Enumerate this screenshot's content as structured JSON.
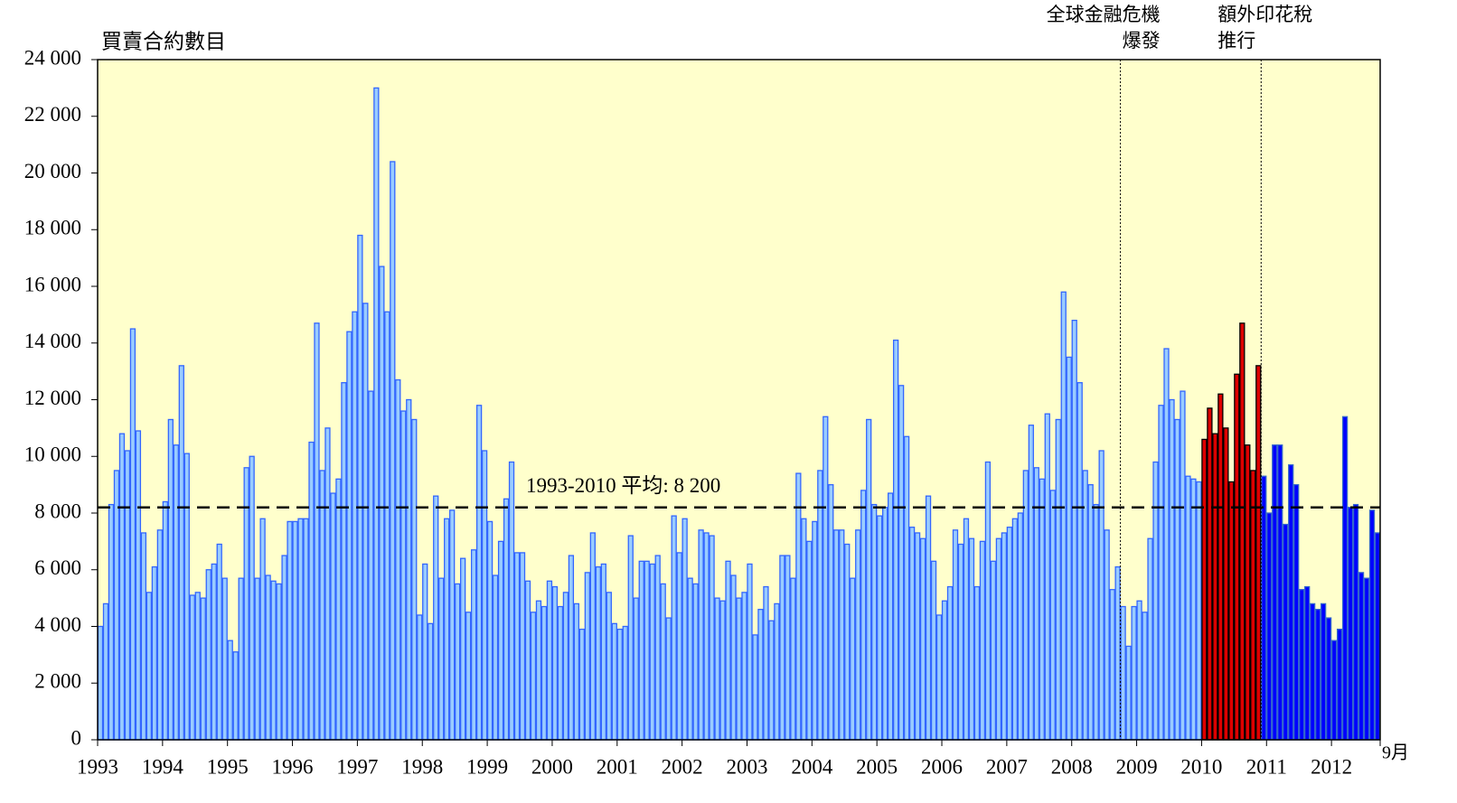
{
  "chart_data": {
    "type": "bar",
    "y_title": "買賣合約數目",
    "categories": [
      "1993",
      null,
      null,
      null,
      null,
      null,
      null,
      null,
      null,
      null,
      null,
      null,
      "1994",
      null,
      null,
      null,
      null,
      null,
      null,
      null,
      null,
      null,
      null,
      null,
      "1995",
      null,
      null,
      null,
      null,
      null,
      null,
      null,
      null,
      null,
      null,
      null,
      "1996",
      null,
      null,
      null,
      null,
      null,
      null,
      null,
      null,
      null,
      null,
      null,
      "1997",
      null,
      null,
      null,
      null,
      null,
      null,
      null,
      null,
      null,
      null,
      null,
      "1998",
      null,
      null,
      null,
      null,
      null,
      null,
      null,
      null,
      null,
      null,
      null,
      "1999",
      null,
      null,
      null,
      null,
      null,
      null,
      null,
      null,
      null,
      null,
      null,
      "2000",
      null,
      null,
      null,
      null,
      null,
      null,
      null,
      null,
      null,
      null,
      null,
      "2001",
      null,
      null,
      null,
      null,
      null,
      null,
      null,
      null,
      null,
      null,
      null,
      "2002",
      null,
      null,
      null,
      null,
      null,
      null,
      null,
      null,
      null,
      null,
      null,
      "2003",
      null,
      null,
      null,
      null,
      null,
      null,
      null,
      null,
      null,
      null,
      null,
      "2004",
      null,
      null,
      null,
      null,
      null,
      null,
      null,
      null,
      null,
      null,
      null,
      "2005",
      null,
      null,
      null,
      null,
      null,
      null,
      null,
      null,
      null,
      null,
      null,
      "2006",
      null,
      null,
      null,
      null,
      null,
      null,
      null,
      null,
      null,
      null,
      null,
      "2007",
      null,
      null,
      null,
      null,
      null,
      null,
      null,
      null,
      null,
      null,
      null,
      "2008",
      null,
      null,
      null,
      null,
      null,
      null,
      null,
      null,
      null,
      null,
      null,
      "2009",
      null,
      null,
      null,
      null,
      null,
      null,
      null,
      null,
      null,
      null,
      null,
      "2010",
      null,
      null,
      null,
      null,
      null,
      null,
      null,
      null,
      null,
      null,
      null,
      "2011",
      null,
      null,
      null,
      null,
      null,
      null,
      null,
      null,
      null,
      null,
      null,
      "2012",
      null,
      null,
      null,
      null,
      null,
      null,
      null,
      null
    ],
    "x_end_label": "9月",
    "segments": [
      {
        "color": "#99ccff",
        "edge": "#3366ff",
        "values": [
          4000,
          4800,
          8300,
          9500,
          10800,
          10200,
          14500,
          10900,
          7300,
          5200,
          6100,
          7400,
          8400,
          11300,
          10400,
          13200,
          10100,
          5100,
          5200,
          5000,
          6000,
          6200,
          6900,
          5700,
          3500,
          3100,
          5700,
          9600,
          10000,
          5700,
          7800,
          5800,
          5600,
          5500,
          6500,
          7700,
          7700,
          7800,
          7800,
          10500,
          14700,
          9500,
          11000,
          8700,
          9200,
          12600,
          14400,
          15100,
          17800,
          15400,
          12300,
          23000,
          16700,
          15100,
          20400,
          12700,
          11600,
          12000,
          11300,
          4400,
          6200,
          4100,
          8600,
          5700,
          7800,
          8100,
          5500,
          6400,
          4500,
          6700,
          11800,
          10200,
          7700,
          5800,
          7000,
          8500,
          9800,
          6600,
          6600,
          5600,
          4500,
          4900,
          4700,
          5600,
          5400,
          4700,
          5200,
          6500,
          4800,
          3900,
          5900,
          7300,
          6100,
          6200,
          5200,
          4100,
          3900,
          4000,
          7200,
          5000,
          6300,
          6300,
          6200,
          6500,
          5500,
          4300,
          7900,
          6600,
          7800,
          5700,
          5500,
          7400,
          7300,
          7200,
          5000,
          4900,
          6300,
          5800,
          5000,
          5200,
          6200,
          3700,
          4600,
          5400,
          4200,
          4800,
          6500,
          6500,
          5700,
          9400,
          7800,
          7000,
          7700,
          9500,
          11400,
          9000,
          7400,
          7400,
          6900,
          5700,
          7400,
          8800,
          11300,
          8300,
          7900,
          8200,
          8700,
          14100,
          12500,
          10700,
          7500,
          7300,
          7100,
          8600,
          6300,
          4400,
          4900,
          5400,
          7400,
          6900,
          7800,
          7100,
          5400,
          7000,
          9800,
          6300,
          7100,
          7300,
          7500,
          7800,
          8000,
          9500,
          11100,
          9600,
          9200,
          11500,
          8800,
          11300,
          15800,
          13500,
          14800,
          12600,
          9500,
          9000,
          8300,
          10200,
          7400,
          5300,
          6100,
          4700,
          3300,
          4700,
          4900,
          4500,
          7100,
          9800,
          11800,
          13800,
          12000,
          11300,
          12300,
          9300,
          9200,
          9100
        ]
      },
      {
        "color": "#dd0000",
        "edge": "#000000",
        "values": [
          10600,
          11700,
          10800,
          12200,
          11000,
          9100,
          12900,
          14700,
          10400,
          9500,
          13200
        ]
      },
      {
        "color": "#0000ff",
        "edge": "#3366cc",
        "values": [
          9300,
          8000,
          10400,
          10400,
          7600,
          9700,
          9000,
          5300,
          5400,
          4800,
          4600,
          4800,
          4300,
          3500,
          3900,
          11400,
          8200,
          8300,
          5900,
          5700,
          8100,
          7300
        ]
      }
    ],
    "average": {
      "value": 8200,
      "label": "1993-2010 平均: 8 200"
    },
    "annotations": [
      {
        "lines": [
          "全球金融危機",
          "爆發"
        ]
      },
      {
        "lines": [
          "額外印花稅",
          "推行"
        ]
      }
    ],
    "ylim": [
      0,
      24000
    ],
    "yticks": [
      0,
      {
        "value": 2000,
        "label": "2 000"
      },
      {
        "value": 4000,
        "label": "4 000"
      },
      {
        "value": 6000,
        "label": "6 000"
      },
      {
        "value": 8000,
        "label": "8 000"
      },
      {
        "value": 10000,
        "label": "10 000"
      },
      {
        "value": 12000,
        "label": "12 000"
      },
      {
        "value": 14000,
        "label": "14 000"
      },
      {
        "value": 16000,
        "label": "16 000"
      },
      {
        "value": 18000,
        "label": "18 000"
      },
      {
        "value": 20000,
        "label": "20 000"
      },
      {
        "value": 22000,
        "label": "22 000"
      },
      {
        "value": 24000,
        "label": "24 000"
      }
    ],
    "plot_background": "#ffffcc"
  }
}
